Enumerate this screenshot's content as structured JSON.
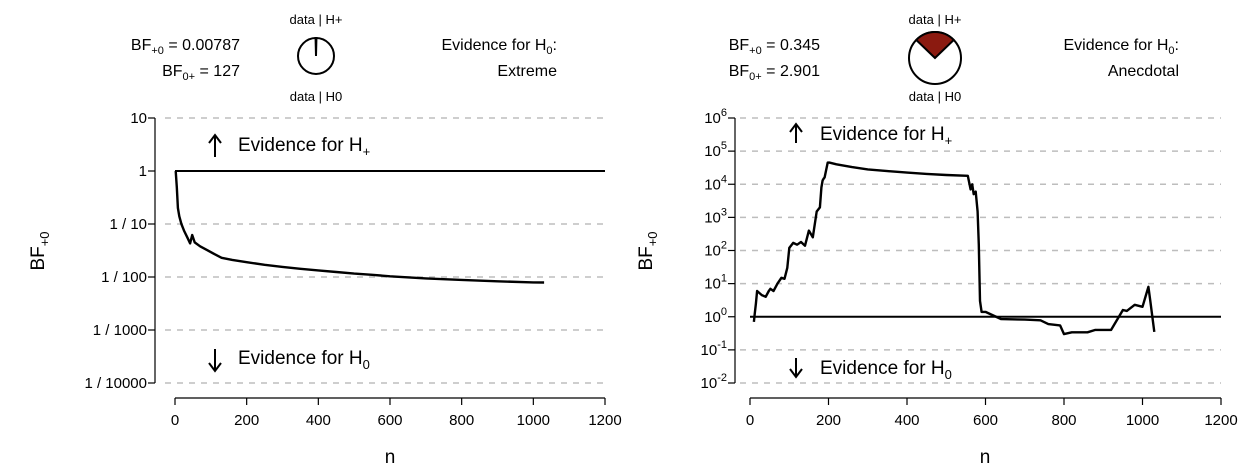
{
  "colors": {
    "pie_h_plus": "#8b1a10",
    "pie_h0": "#ffffff",
    "grid": "#bdbdbd",
    "line": "#000000"
  },
  "chart_data": [
    {
      "type": "line",
      "header": {
        "bf10_label": "BF",
        "bf10_sub": "+0",
        "bf10_value": "0.00787",
        "bf01_label": "BF",
        "bf01_sub": "0+",
        "bf01_value": "127",
        "pie_top": "data | H+",
        "pie_bottom": "data | H0",
        "evidence_label": "Evidence for H",
        "evidence_sub": "0",
        "evidence_suffix": ":",
        "evidence_level": "Extreme",
        "pie_fraction_h_plus": 0.0078
      },
      "ylabel_main": "BF",
      "ylabel_sub": "+0",
      "xlabel": "n",
      "y_scale": "log",
      "ylim": [
        0.0001,
        10
      ],
      "xlim": [
        0,
        1200
      ],
      "x_ticks": [
        "0",
        "200",
        "400",
        "600",
        "800",
        "1000",
        "1200"
      ],
      "y_ticks": [
        {
          "value": 10,
          "label": "10"
        },
        {
          "value": 1,
          "label": "1"
        },
        {
          "value": 0.1,
          "label": "1 / 10"
        },
        {
          "value": 0.01,
          "label": "1 / 100"
        },
        {
          "value": 0.001,
          "label": "1 / 1000"
        },
        {
          "value": 0.0001,
          "label": "1 / 10000"
        }
      ],
      "reference_line": 1,
      "annotation_up": {
        "text": "Evidence for H",
        "sub": "+"
      },
      "annotation_down": {
        "text": "Evidence for H",
        "sub": "0"
      },
      "series": [
        {
          "x": [
            2,
            5,
            8,
            12,
            18,
            25,
            35,
            42,
            48,
            55,
            70,
            90,
            110,
            130,
            160,
            200,
            250,
            300,
            350,
            400,
            450,
            500,
            550,
            600,
            700,
            800,
            900,
            1000,
            1030
          ],
          "y": [
            1.0,
            0.5,
            0.2,
            0.14,
            0.1,
            0.075,
            0.055,
            0.043,
            0.062,
            0.045,
            0.038,
            0.032,
            0.027,
            0.023,
            0.021,
            0.019,
            0.017,
            0.0155,
            0.0143,
            0.0133,
            0.0124,
            0.0116,
            0.011,
            0.0103,
            0.0094,
            0.0088,
            0.0083,
            0.0079,
            0.00787
          ]
        }
      ]
    },
    {
      "type": "line",
      "header": {
        "bf10_label": "BF",
        "bf10_sub": "+0",
        "bf10_value": "0.345",
        "bf01_label": "BF",
        "bf01_sub": "0+",
        "bf01_value": "2.901",
        "pie_top": "data | H+",
        "pie_bottom": "data | H0",
        "evidence_label": "Evidence for H",
        "evidence_sub": "0",
        "evidence_suffix": ":",
        "evidence_level": "Anecdotal",
        "pie_fraction_h_plus": 0.256
      },
      "ylabel_main": "BF",
      "ylabel_sub": "+0",
      "xlabel": "n",
      "y_scale": "log",
      "ylim": [
        0.01,
        1000000
      ],
      "xlim": [
        0,
        1200
      ],
      "x_ticks": [
        "0",
        "200",
        "400",
        "600",
        "800",
        "1000",
        "1200"
      ],
      "y_ticks": [
        {
          "value": 1000000,
          "base": "10",
          "exp": "6"
        },
        {
          "value": 100000,
          "base": "10",
          "exp": "5"
        },
        {
          "value": 10000,
          "base": "10",
          "exp": "4"
        },
        {
          "value": 1000,
          "base": "10",
          "exp": "3"
        },
        {
          "value": 100,
          "base": "10",
          "exp": "2"
        },
        {
          "value": 10,
          "base": "10",
          "exp": "1"
        },
        {
          "value": 1,
          "base": "10",
          "exp": "0"
        },
        {
          "value": 0.1,
          "base": "10",
          "exp": "-1"
        },
        {
          "value": 0.01,
          "base": "10",
          "exp": "-2"
        }
      ],
      "reference_line": 1,
      "annotation_up": {
        "text": "Evidence for H",
        "sub": "+"
      },
      "annotation_down": {
        "text": "Evidence for H",
        "sub": "0"
      },
      "series": [
        {
          "x": [
            10,
            12,
            15,
            18,
            30,
            40,
            48,
            52,
            60,
            70,
            80,
            88,
            95,
            100,
            110,
            120,
            130,
            140,
            150,
            160,
            170,
            178,
            182,
            185,
            188,
            190,
            195,
            198,
            202,
            220,
            260,
            300,
            350,
            400,
            450,
            500,
            555,
            562,
            566,
            570,
            575,
            580,
            583,
            586,
            590,
            600,
            640,
            700,
            740,
            760,
            790,
            800,
            820,
            860,
            880,
            920,
            950,
            960,
            980,
            1000,
            1010,
            1015,
            1020,
            1030
          ],
          "y": [
            0.7,
            1.2,
            2.5,
            6,
            4.5,
            4,
            6,
            7,
            6,
            10,
            15,
            14,
            30,
            120,
            170,
            150,
            180,
            140,
            400,
            250,
            1500,
            2000,
            8000,
            13000,
            15000,
            16000,
            30000,
            45000,
            45000,
            40000,
            33000,
            28000,
            25000,
            22500,
            20500,
            19000,
            18000,
            7000,
            10000,
            5000,
            6000,
            1500,
            150,
            3,
            1.4,
            1.4,
            0.85,
            0.82,
            0.78,
            0.6,
            0.55,
            0.3,
            0.34,
            0.34,
            0.4,
            0.4,
            1.6,
            1.5,
            2.3,
            2,
            5,
            8,
            3,
            0.35
          ]
        }
      ]
    }
  ]
}
